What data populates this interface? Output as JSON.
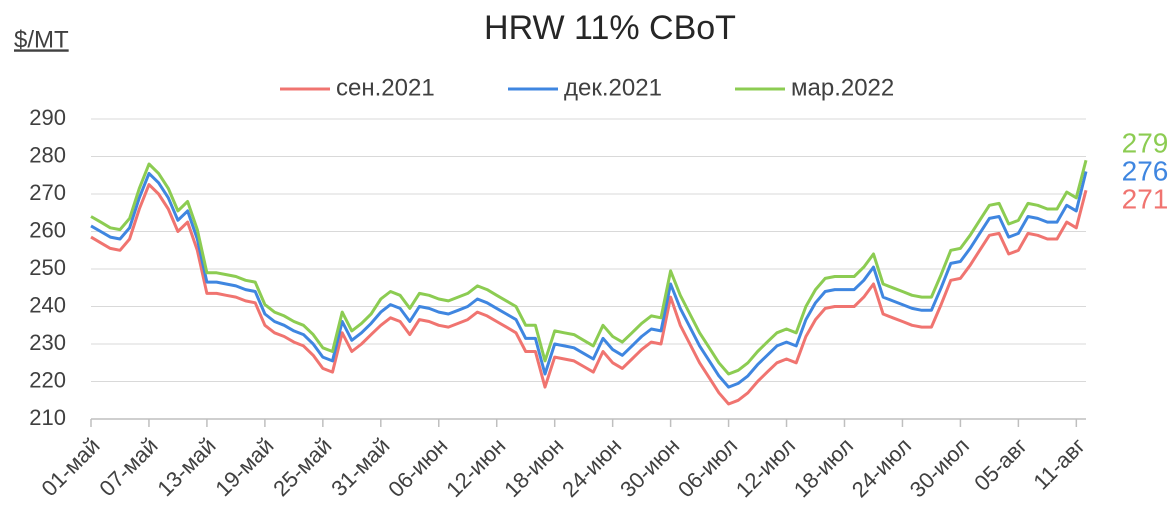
{
  "chart_data": {
    "type": "line",
    "title": "HRW 11% CBoT",
    "y_label": "$/MT",
    "categories": [
      "01-май",
      null,
      null,
      null,
      null,
      null,
      "07-май",
      null,
      null,
      null,
      null,
      null,
      "13-май",
      null,
      null,
      null,
      null,
      null,
      "19-май",
      null,
      null,
      null,
      null,
      null,
      "25-май",
      null,
      null,
      null,
      null,
      null,
      "31-май",
      null,
      null,
      null,
      null,
      null,
      "06-июн",
      null,
      null,
      null,
      null,
      null,
      "12-июн",
      null,
      null,
      null,
      null,
      null,
      "18-июн",
      null,
      null,
      null,
      null,
      null,
      "24-июн",
      null,
      null,
      null,
      null,
      null,
      "30-июн",
      null,
      null,
      null,
      null,
      null,
      "06-июл",
      null,
      null,
      null,
      null,
      null,
      "12-июл",
      null,
      null,
      null,
      null,
      null,
      "18-июл",
      null,
      null,
      null,
      null,
      null,
      "24-июл",
      null,
      null,
      null,
      null,
      null,
      "30-июл",
      null,
      null,
      null,
      null,
      null,
      "05-авг",
      null,
      null,
      null,
      null,
      null,
      "11-авг",
      null
    ],
    "ylim": [
      210,
      290
    ],
    "yticks": [
      210,
      220,
      230,
      240,
      250,
      260,
      270,
      280,
      290
    ],
    "grid": true,
    "legend": "top",
    "series": [
      {
        "name": "сен.2021",
        "color": "#f07470",
        "value_labels": [
          null,
          null,
          null,
          null,
          null,
          null,
          null,
          null,
          null,
          null,
          null,
          null,
          null,
          null,
          null,
          null,
          null,
          null,
          null,
          null,
          null,
          null,
          null,
          null,
          null,
          null,
          null,
          null,
          null,
          null,
          null,
          null,
          null,
          null,
          null,
          null,
          null,
          null,
          null,
          null,
          null,
          null,
          null,
          null,
          null,
          null,
          null,
          null,
          null,
          null,
          null,
          null,
          null,
          null,
          null,
          null,
          null,
          null,
          null,
          null,
          null,
          null,
          null,
          null,
          null,
          null,
          null,
          null,
          null,
          null,
          null,
          null,
          null,
          null,
          null,
          null,
          null,
          null,
          null,
          null,
          null,
          null,
          null,
          null,
          null,
          null,
          null,
          null,
          null,
          null,
          null,
          null,
          null,
          null,
          null,
          null,
          null,
          null,
          null,
          null,
          null,
          null,
          null,
          "271"
        ],
        "values": [
          258.5,
          257,
          255.5,
          255,
          258,
          266,
          272.5,
          270,
          266,
          260,
          262.5,
          255,
          243.5,
          243.5,
          243,
          242.5,
          241.5,
          241,
          235,
          233,
          232,
          230.5,
          229.5,
          227,
          223.5,
          222.5,
          233,
          228,
          230,
          232.5,
          235,
          237,
          236,
          232.5,
          236.5,
          236,
          235,
          234.5,
          235.5,
          236.5,
          238.5,
          237.5,
          236,
          234.5,
          233,
          228,
          228,
          218.5,
          226.5,
          226,
          225.5,
          224,
          222.5,
          228,
          225,
          223.5,
          226,
          228.5,
          230.5,
          230,
          242.5,
          235,
          230,
          225,
          221,
          217,
          214,
          215,
          217,
          220,
          222.5,
          225,
          226,
          225,
          232,
          236.5,
          239.5,
          240,
          240,
          240,
          242.5,
          246,
          238,
          237,
          236,
          235,
          234.5,
          234.5,
          240.5,
          247,
          247.5,
          251,
          255,
          259,
          259.5,
          254,
          255,
          259.5,
          259,
          258,
          258,
          262.5,
          261,
          271
        ]
      },
      {
        "name": "дек.2021",
        "color": "#3f86e0",
        "value_labels": [
          null,
          null,
          null,
          null,
          null,
          null,
          null,
          null,
          null,
          null,
          null,
          null,
          null,
          null,
          null,
          null,
          null,
          null,
          null,
          null,
          null,
          null,
          null,
          null,
          null,
          null,
          null,
          null,
          null,
          null,
          null,
          null,
          null,
          null,
          null,
          null,
          null,
          null,
          null,
          null,
          null,
          null,
          null,
          null,
          null,
          null,
          null,
          null,
          null,
          null,
          null,
          null,
          null,
          null,
          null,
          null,
          null,
          null,
          null,
          null,
          null,
          null,
          null,
          null,
          null,
          null,
          null,
          null,
          null,
          null,
          null,
          null,
          null,
          null,
          null,
          null,
          null,
          null,
          null,
          null,
          null,
          null,
          null,
          null,
          null,
          null,
          null,
          null,
          null,
          null,
          null,
          null,
          null,
          null,
          null,
          null,
          null,
          null,
          null,
          null,
          null,
          null,
          null,
          "276"
        ],
        "values": [
          261.5,
          260,
          258.5,
          258,
          261,
          269,
          275.5,
          273,
          269,
          263,
          265.5,
          258,
          246.5,
          246.5,
          246,
          245.5,
          244.5,
          244,
          238,
          236,
          235,
          233.5,
          232.5,
          230,
          226.5,
          225.5,
          236,
          231,
          233,
          235.5,
          238.5,
          240.5,
          239.5,
          236,
          240,
          239.5,
          238.5,
          238,
          239,
          240,
          242,
          241,
          239.5,
          238,
          236.5,
          231.5,
          231.5,
          222,
          230,
          229.5,
          229,
          227.5,
          226,
          231.5,
          228.5,
          227,
          229.5,
          232,
          234,
          233.5,
          246,
          239.5,
          234.5,
          229.5,
          225.5,
          221.5,
          218.5,
          219.5,
          221.5,
          224.5,
          227,
          229.5,
          230.5,
          229.5,
          236.5,
          241,
          244,
          244.5,
          244.5,
          244.5,
          247,
          250.5,
          242.5,
          241.5,
          240.5,
          239.5,
          239,
          239,
          245,
          251.5,
          252,
          255.5,
          259.5,
          263.5,
          264,
          258.5,
          259.5,
          264,
          263.5,
          262.5,
          262.5,
          267,
          265.5,
          276
        ]
      },
      {
        "name": "мар.2022",
        "color": "#8ccc52",
        "value_labels": [
          null,
          null,
          null,
          null,
          null,
          null,
          null,
          null,
          null,
          null,
          null,
          null,
          null,
          null,
          null,
          null,
          null,
          null,
          null,
          null,
          null,
          null,
          null,
          null,
          null,
          null,
          null,
          null,
          null,
          null,
          null,
          null,
          null,
          null,
          null,
          null,
          null,
          null,
          null,
          null,
          null,
          null,
          null,
          null,
          null,
          null,
          null,
          null,
          null,
          null,
          null,
          null,
          null,
          null,
          null,
          null,
          null,
          null,
          null,
          null,
          null,
          null,
          null,
          null,
          null,
          null,
          null,
          null,
          null,
          null,
          null,
          null,
          null,
          null,
          null,
          null,
          null,
          null,
          null,
          null,
          null,
          null,
          null,
          null,
          null,
          null,
          null,
          null,
          null,
          null,
          null,
          null,
          null,
          null,
          null,
          null,
          null,
          null,
          null,
          null,
          null,
          null,
          null,
          "279"
        ],
        "values": [
          264,
          262.5,
          261,
          260.5,
          263.5,
          271.5,
          278,
          275.5,
          271.5,
          265.5,
          268,
          260.5,
          249,
          249,
          248.5,
          248,
          247,
          246.5,
          240.5,
          238.5,
          237.5,
          236,
          235,
          232.5,
          229,
          228,
          238.5,
          233.5,
          235.5,
          238,
          242,
          244,
          243,
          239.5,
          243.5,
          243,
          242,
          241.5,
          242.5,
          243.5,
          245.5,
          244.5,
          243,
          241.5,
          240,
          235,
          235,
          225.5,
          233.5,
          233,
          232.5,
          231,
          229.5,
          235,
          232,
          230.5,
          233,
          235.5,
          237.5,
          237,
          249.5,
          243,
          238,
          233,
          229,
          225,
          222,
          223,
          225,
          228,
          230.5,
          233,
          234,
          233,
          240,
          244.5,
          247.5,
          248,
          248,
          248,
          250.5,
          254,
          246,
          245,
          244,
          243,
          242.5,
          242.5,
          248.5,
          255,
          255.5,
          259,
          263,
          267,
          267.5,
          262,
          263,
          267.5,
          267,
          266,
          266,
          270.5,
          269,
          279
        ]
      }
    ]
  }
}
